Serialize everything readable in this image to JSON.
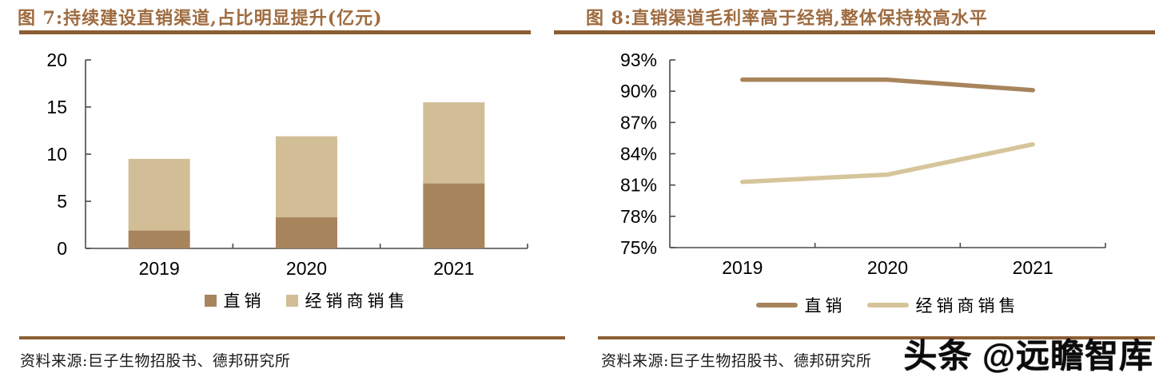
{
  "watermark": "头条 @远瞻智库",
  "colors": {
    "title": "#9E6B3F",
    "rule": "#8B5E34",
    "axis": "#4a4a4a",
    "direct": "#A8845C",
    "distributor_bar": "#D2BE96",
    "distributor_line": "#D6C59A",
    "text": "#000000"
  },
  "figure7": {
    "title": "图 7:持续建设直销渠道,占比明显提升(亿元)",
    "chart_data": {
      "type": "bar",
      "stacked": true,
      "categories": [
        "2019",
        "2020",
        "2021"
      ],
      "series": [
        {
          "name": "直销",
          "values": [
            1.9,
            3.3,
            6.9
          ],
          "color": "#A8845C"
        },
        {
          "name": "经销商销售",
          "values": [
            7.6,
            8.6,
            8.6
          ],
          "color": "#D2BE96"
        }
      ],
      "totals": [
        9.5,
        11.9,
        15.5
      ],
      "ylim": [
        0,
        20
      ],
      "yticks": [
        0,
        5,
        10,
        15,
        20
      ],
      "ytick_suffix": "",
      "grid": false,
      "legend_position": "bottom"
    },
    "legend": [
      {
        "label": "直销",
        "color": "#A8845C"
      },
      {
        "label": "经销商销售",
        "color": "#D2BE96"
      }
    ],
    "source": "资料来源:巨子生物招股书、德邦研究所"
  },
  "figure8": {
    "title": "图 8:直销渠道毛利率高于经销,整体保持较高水平",
    "chart_data": {
      "type": "line",
      "categories": [
        "2019",
        "2020",
        "2021"
      ],
      "series": [
        {
          "name": "直销",
          "values": [
            91.1,
            91.1,
            90.1
          ],
          "color": "#A8845C"
        },
        {
          "name": "经销商销售",
          "values": [
            81.3,
            82.0,
            84.9
          ],
          "color": "#D6C59A"
        }
      ],
      "ylim": [
        75,
        93
      ],
      "yticks": [
        75,
        78,
        81,
        84,
        87,
        90,
        93
      ],
      "ytick_suffix": "%",
      "grid": false,
      "legend_position": "bottom"
    },
    "legend": [
      {
        "label": "直销",
        "color": "#A8845C"
      },
      {
        "label": "经销商销售",
        "color": "#D6C59A"
      }
    ],
    "source": "资料来源:巨子生物招股书、德邦研究所"
  }
}
